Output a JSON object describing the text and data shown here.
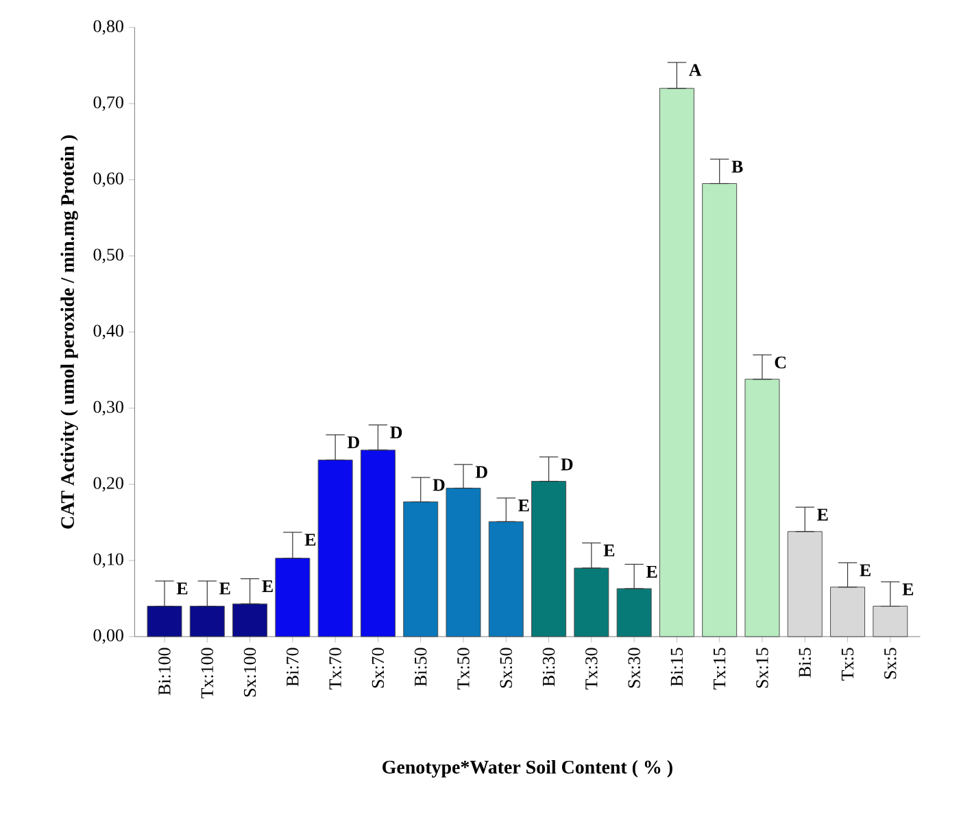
{
  "chart_data": {
    "type": "bar",
    "xlabel": "Genotype*Water Soil Content ( % )",
    "ylabel": "CAT Activity ( umol peroxide / min.mg Protein )",
    "categories": [
      "Bi:100",
      "Tx:100",
      "Sx:100",
      "Bi:70",
      "Tx:70",
      "Sx:70",
      "Bi:50",
      "Tx:50",
      "Sx:50",
      "Bi:30",
      "Tx:30",
      "Sx:30",
      "Bi:15",
      "Tx:15",
      "Sx:15",
      "Bi:5",
      "Tx:5",
      "Sx:5"
    ],
    "values": [
      0.04,
      0.04,
      0.043,
      0.103,
      0.232,
      0.245,
      0.177,
      0.195,
      0.151,
      0.204,
      0.09,
      0.063,
      0.72,
      0.595,
      0.338,
      0.138,
      0.065,
      0.04
    ],
    "errors": [
      [
        0.04,
        0.073
      ],
      [
        0.04,
        0.073
      ],
      [
        0.043,
        0.076
      ],
      [
        0.103,
        0.137
      ],
      [
        0.232,
        0.265
      ],
      [
        0.245,
        0.278
      ],
      [
        0.177,
        0.209
      ],
      [
        0.195,
        0.226
      ],
      [
        0.151,
        0.182
      ],
      [
        0.204,
        0.236
      ],
      [
        0.09,
        0.123
      ],
      [
        0.063,
        0.095
      ],
      [
        0.72,
        0.754
      ],
      [
        0.595,
        0.627
      ],
      [
        0.338,
        0.37
      ],
      [
        0.138,
        0.17
      ],
      [
        0.065,
        0.097
      ],
      [
        0.04,
        0.072
      ]
    ],
    "colors": [
      "#0a0a8c",
      "#0a0a8c",
      "#0a0a8c",
      "#0a0aee",
      "#0a0aee",
      "#0a0aee",
      "#0a78ba",
      "#0a78ba",
      "#0a78ba",
      "#077a78",
      "#077a78",
      "#077a78",
      "#b8ebc0",
      "#b8ebc0",
      "#b8ebc0",
      "#d8d8d8",
      "#d8d8d8",
      "#d8d8d8"
    ],
    "ylim": [
      0,
      0.8
    ],
    "yticks": [
      {
        "value": 0,
        "label": "0,00"
      },
      {
        "value": 0.1,
        "label": "0,10"
      },
      {
        "value": 0.2,
        "label": "0,20"
      },
      {
        "value": 0.3,
        "label": "0,30"
      },
      {
        "value": 0.4,
        "label": "0,40"
      },
      {
        "value": 0.5,
        "label": "0,50"
      },
      {
        "value": 0.6,
        "label": "0,60"
      },
      {
        "value": 0.7,
        "label": "0,70"
      },
      {
        "value": 0.8,
        "label": "0,80"
      }
    ],
    "annotations": [
      {
        "text": "E",
        "x": "Bi:100",
        "y": 0.073
      },
      {
        "text": "E",
        "x": "Tx:100",
        "y": 0.073
      },
      {
        "text": "E",
        "x": "Sx:100",
        "y": 0.076
      },
      {
        "text": "E",
        "x": "Bi:70",
        "y": 0.137
      },
      {
        "text": "D",
        "x": "Tx:70",
        "y": 0.265
      },
      {
        "text": "D",
        "x": "Sx:70",
        "y": 0.278
      },
      {
        "text": "D",
        "x": "Bi:50",
        "y": 0.209
      },
      {
        "text": "D",
        "x": "Tx:50",
        "y": 0.226
      },
      {
        "text": "E",
        "x": "Sx:50",
        "y": 0.182
      },
      {
        "text": "D",
        "x": "Bi:30",
        "y": 0.236
      },
      {
        "text": "E",
        "x": "Tx:30",
        "y": 0.123
      },
      {
        "text": "E",
        "x": "Sx:30",
        "y": 0.095
      },
      {
        "text": "A",
        "x": "Bi:15",
        "y": 0.754
      },
      {
        "text": "B",
        "x": "Tx:15",
        "y": 0.627
      },
      {
        "text": "C",
        "x": "Sx:15",
        "y": 0.37
      },
      {
        "text": "E",
        "x": "Bi:5",
        "y": 0.17
      },
      {
        "text": "E",
        "x": "Tx:5",
        "y": 0.097
      },
      {
        "text": "E",
        "x": "Sx:5",
        "y": 0.072
      }
    ],
    "grid": false
  }
}
